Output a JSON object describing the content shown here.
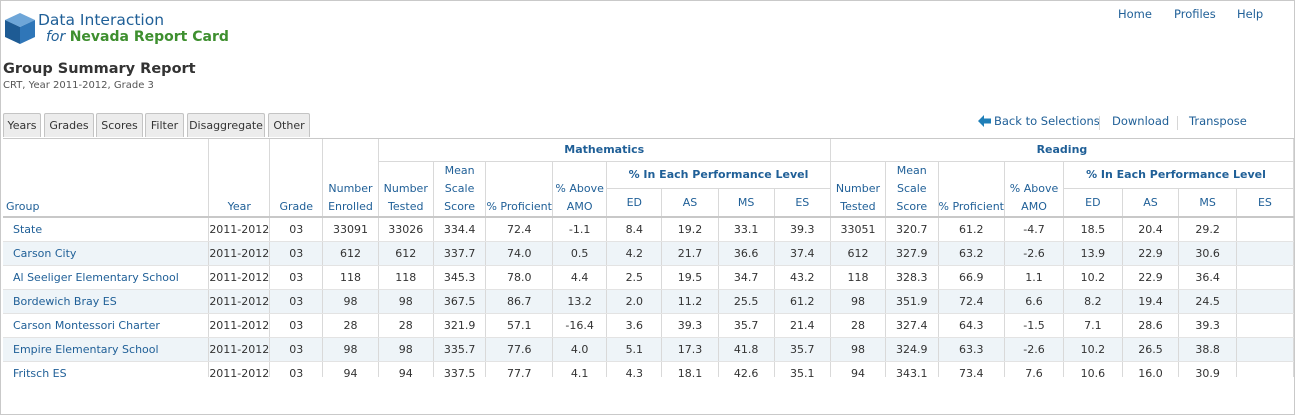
{
  "app": {
    "brand_line1": "Data Interaction",
    "brand_for": "for",
    "brand_name": "Nevada Report Card"
  },
  "topnav": [
    "Home",
    "Profiles",
    "Help"
  ],
  "report": {
    "title": "Group Summary Report",
    "subtitle": "CRT, Year 2011-2012, Grade 3"
  },
  "tabs": [
    "Years",
    "Grades",
    "Scores",
    "Filter",
    "Disaggregate",
    "Other"
  ],
  "actions": {
    "back": "Back to Selections",
    "download": "Download",
    "transpose": "Transpose"
  },
  "table": {
    "groups": {
      "mathematics": "Mathematics",
      "reading": "Reading"
    },
    "perf_level_label": "% In Each Performance Level",
    "headers": {
      "group": "Group",
      "year": "Year",
      "grade": "Grade",
      "enrolled": "Number Enrolled",
      "tested": "Number Tested",
      "mean_scale": "Mean Scale Score",
      "proficient": "% Proficient",
      "above_amo": "% Above AMO",
      "ed": "ED",
      "as": "AS",
      "ms": "MS",
      "es": "ES"
    },
    "rows": [
      {
        "group": "State",
        "year": "2011-2012",
        "grade": "03",
        "enrolled": "33091",
        "m_tested": "33026",
        "m_mean": "334.4",
        "m_prof": "72.4",
        "m_amo": "-1.1",
        "m_ed": "8.4",
        "m_as": "19.2",
        "m_ms": "33.1",
        "m_es": "39.3",
        "r_tested": "33051",
        "r_mean": "320.7",
        "r_prof": "61.2",
        "r_amo": "-4.7",
        "r_ed": "18.5",
        "r_as": "20.4",
        "r_ms": "29.2"
      },
      {
        "group": "Carson City",
        "year": "2011-2012",
        "grade": "03",
        "enrolled": "612",
        "m_tested": "612",
        "m_mean": "337.7",
        "m_prof": "74.0",
        "m_amo": "0.5",
        "m_ed": "4.2",
        "m_as": "21.7",
        "m_ms": "36.6",
        "m_es": "37.4",
        "r_tested": "612",
        "r_mean": "327.9",
        "r_prof": "63.2",
        "r_amo": "-2.6",
        "r_ed": "13.9",
        "r_as": "22.9",
        "r_ms": "30.6"
      },
      {
        "group": "Al Seeliger Elementary School",
        "year": "2011-2012",
        "grade": "03",
        "enrolled": "118",
        "m_tested": "118",
        "m_mean": "345.3",
        "m_prof": "78.0",
        "m_amo": "4.4",
        "m_ed": "2.5",
        "m_as": "19.5",
        "m_ms": "34.7",
        "m_es": "43.2",
        "r_tested": "118",
        "r_mean": "328.3",
        "r_prof": "66.9",
        "r_amo": "1.1",
        "r_ed": "10.2",
        "r_as": "22.9",
        "r_ms": "36.4"
      },
      {
        "group": "Bordewich Bray ES",
        "year": "2011-2012",
        "grade": "03",
        "enrolled": "98",
        "m_tested": "98",
        "m_mean": "367.5",
        "m_prof": "86.7",
        "m_amo": "13.2",
        "m_ed": "2.0",
        "m_as": "11.2",
        "m_ms": "25.5",
        "m_es": "61.2",
        "r_tested": "98",
        "r_mean": "351.9",
        "r_prof": "72.4",
        "r_amo": "6.6",
        "r_ed": "8.2",
        "r_as": "19.4",
        "r_ms": "24.5"
      },
      {
        "group": "Carson Montessori Charter",
        "year": "2011-2012",
        "grade": "03",
        "enrolled": "28",
        "m_tested": "28",
        "m_mean": "321.9",
        "m_prof": "57.1",
        "m_amo": "-16.4",
        "m_ed": "3.6",
        "m_as": "39.3",
        "m_ms": "35.7",
        "m_es": "21.4",
        "r_tested": "28",
        "r_mean": "327.4",
        "r_prof": "64.3",
        "r_amo": "-1.5",
        "r_ed": "7.1",
        "r_as": "28.6",
        "r_ms": "39.3"
      },
      {
        "group": "Empire Elementary School",
        "year": "2011-2012",
        "grade": "03",
        "enrolled": "98",
        "m_tested": "98",
        "m_mean": "335.7",
        "m_prof": "77.6",
        "m_amo": "4.0",
        "m_ed": "5.1",
        "m_as": "17.3",
        "m_ms": "41.8",
        "m_es": "35.7",
        "r_tested": "98",
        "r_mean": "324.9",
        "r_prof": "63.3",
        "r_amo": "-2.6",
        "r_ed": "10.2",
        "r_as": "26.5",
        "r_ms": "38.8"
      },
      {
        "group": "Fritsch ES",
        "year": "2011-2012",
        "grade": "03",
        "enrolled": "94",
        "m_tested": "94",
        "m_mean": "337.5",
        "m_prof": "77.7",
        "m_amo": "4.1",
        "m_ed": "4.3",
        "m_as": "18.1",
        "m_ms": "42.6",
        "m_es": "35.1",
        "r_tested": "94",
        "r_mean": "343.1",
        "r_prof": "73.4",
        "r_amo": "7.6",
        "r_ed": "10.6",
        "r_as": "16.0",
        "r_ms": "30.9"
      }
    ]
  },
  "colors": {
    "link": "#1f5f97",
    "brand_green": "#3e8f2f",
    "row_alt": "#eef4f8"
  }
}
